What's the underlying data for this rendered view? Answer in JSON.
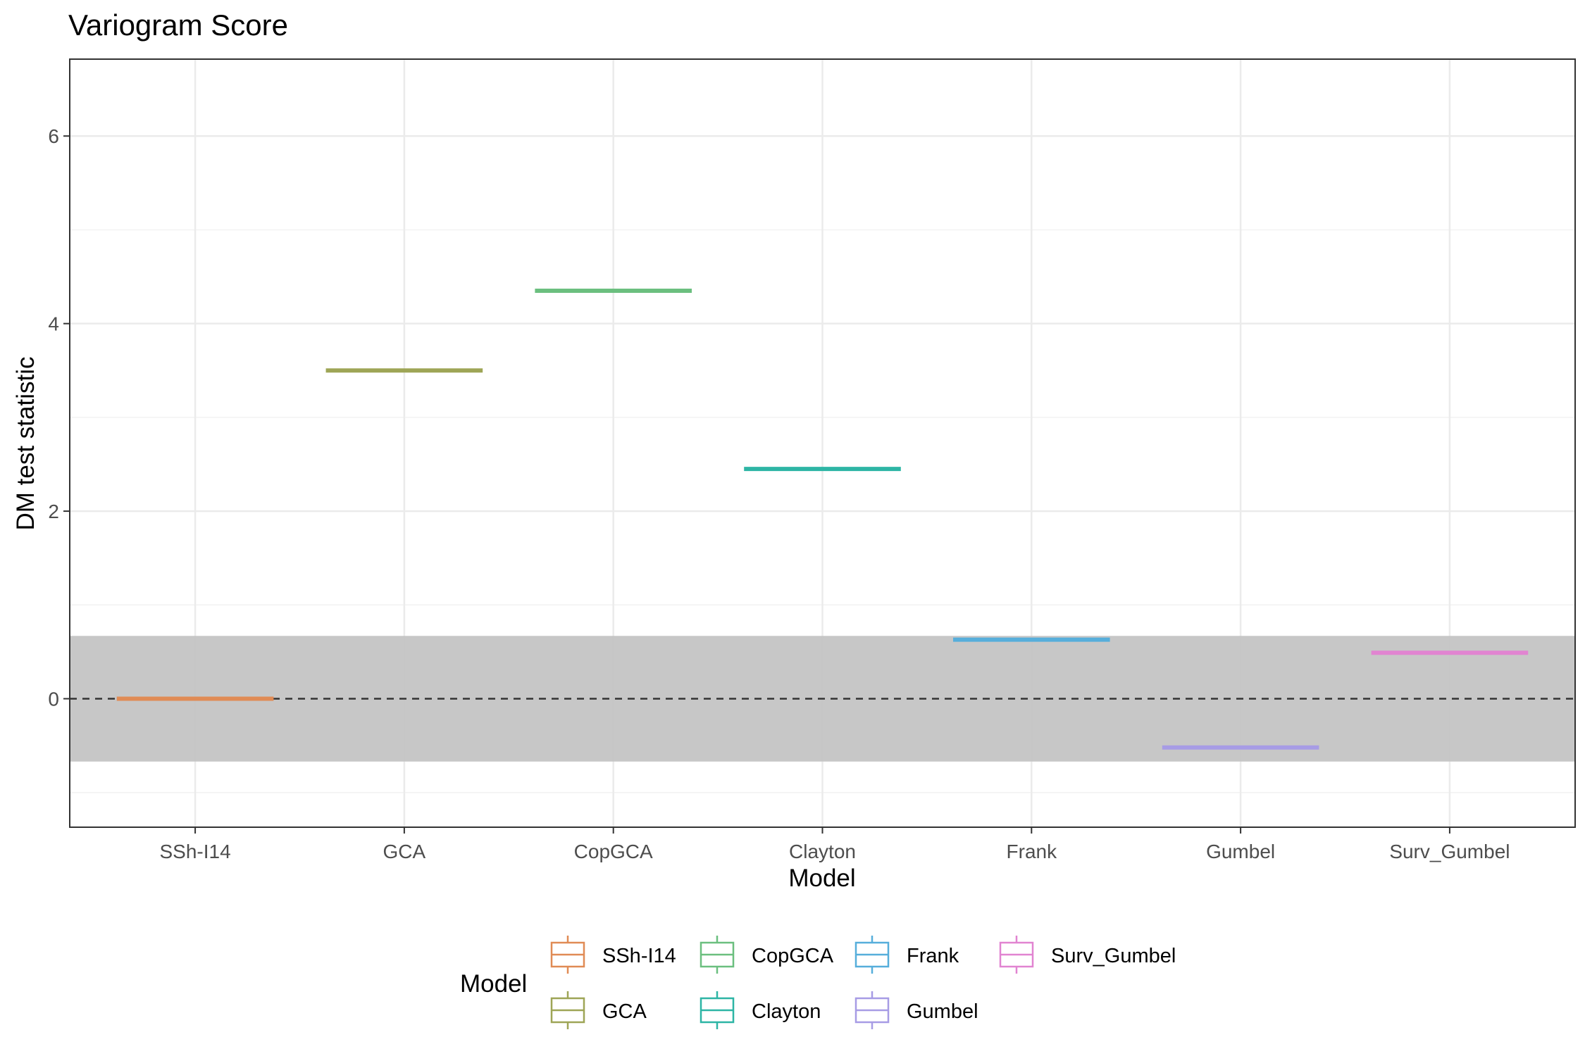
{
  "chart_data": {
    "type": "boxplot",
    "title": "Variogram Score",
    "xlabel": "Model",
    "ylabel": "DM test statistic",
    "categories": [
      "SSh-I14",
      "GCA",
      "CopGCA",
      "Clayton",
      "Frank",
      "Gumbel",
      "Surv_Gumbel"
    ],
    "values": [
      0.0,
      3.5,
      4.35,
      2.45,
      0.63,
      -0.52,
      0.49
    ],
    "colors": [
      "#E08B55",
      "#9EA556",
      "#6BBF7F",
      "#2DB5A5",
      "#56AEDB",
      "#A79CE5",
      "#E184D1"
    ],
    "ylim": [
      -1.37,
      6.82
    ],
    "yticks": [
      0,
      2,
      4,
      6
    ],
    "reference_line": 0,
    "shaded_band": [
      -0.67,
      0.67
    ],
    "grid": true,
    "legend": {
      "title": "Model",
      "position": "bottom",
      "columns": [
        [
          "SSh-I14",
          "GCA"
        ],
        [
          "CopGCA",
          "Clayton"
        ],
        [
          "Frank",
          "Gumbel"
        ],
        [
          "Surv_Gumbel"
        ]
      ]
    }
  }
}
